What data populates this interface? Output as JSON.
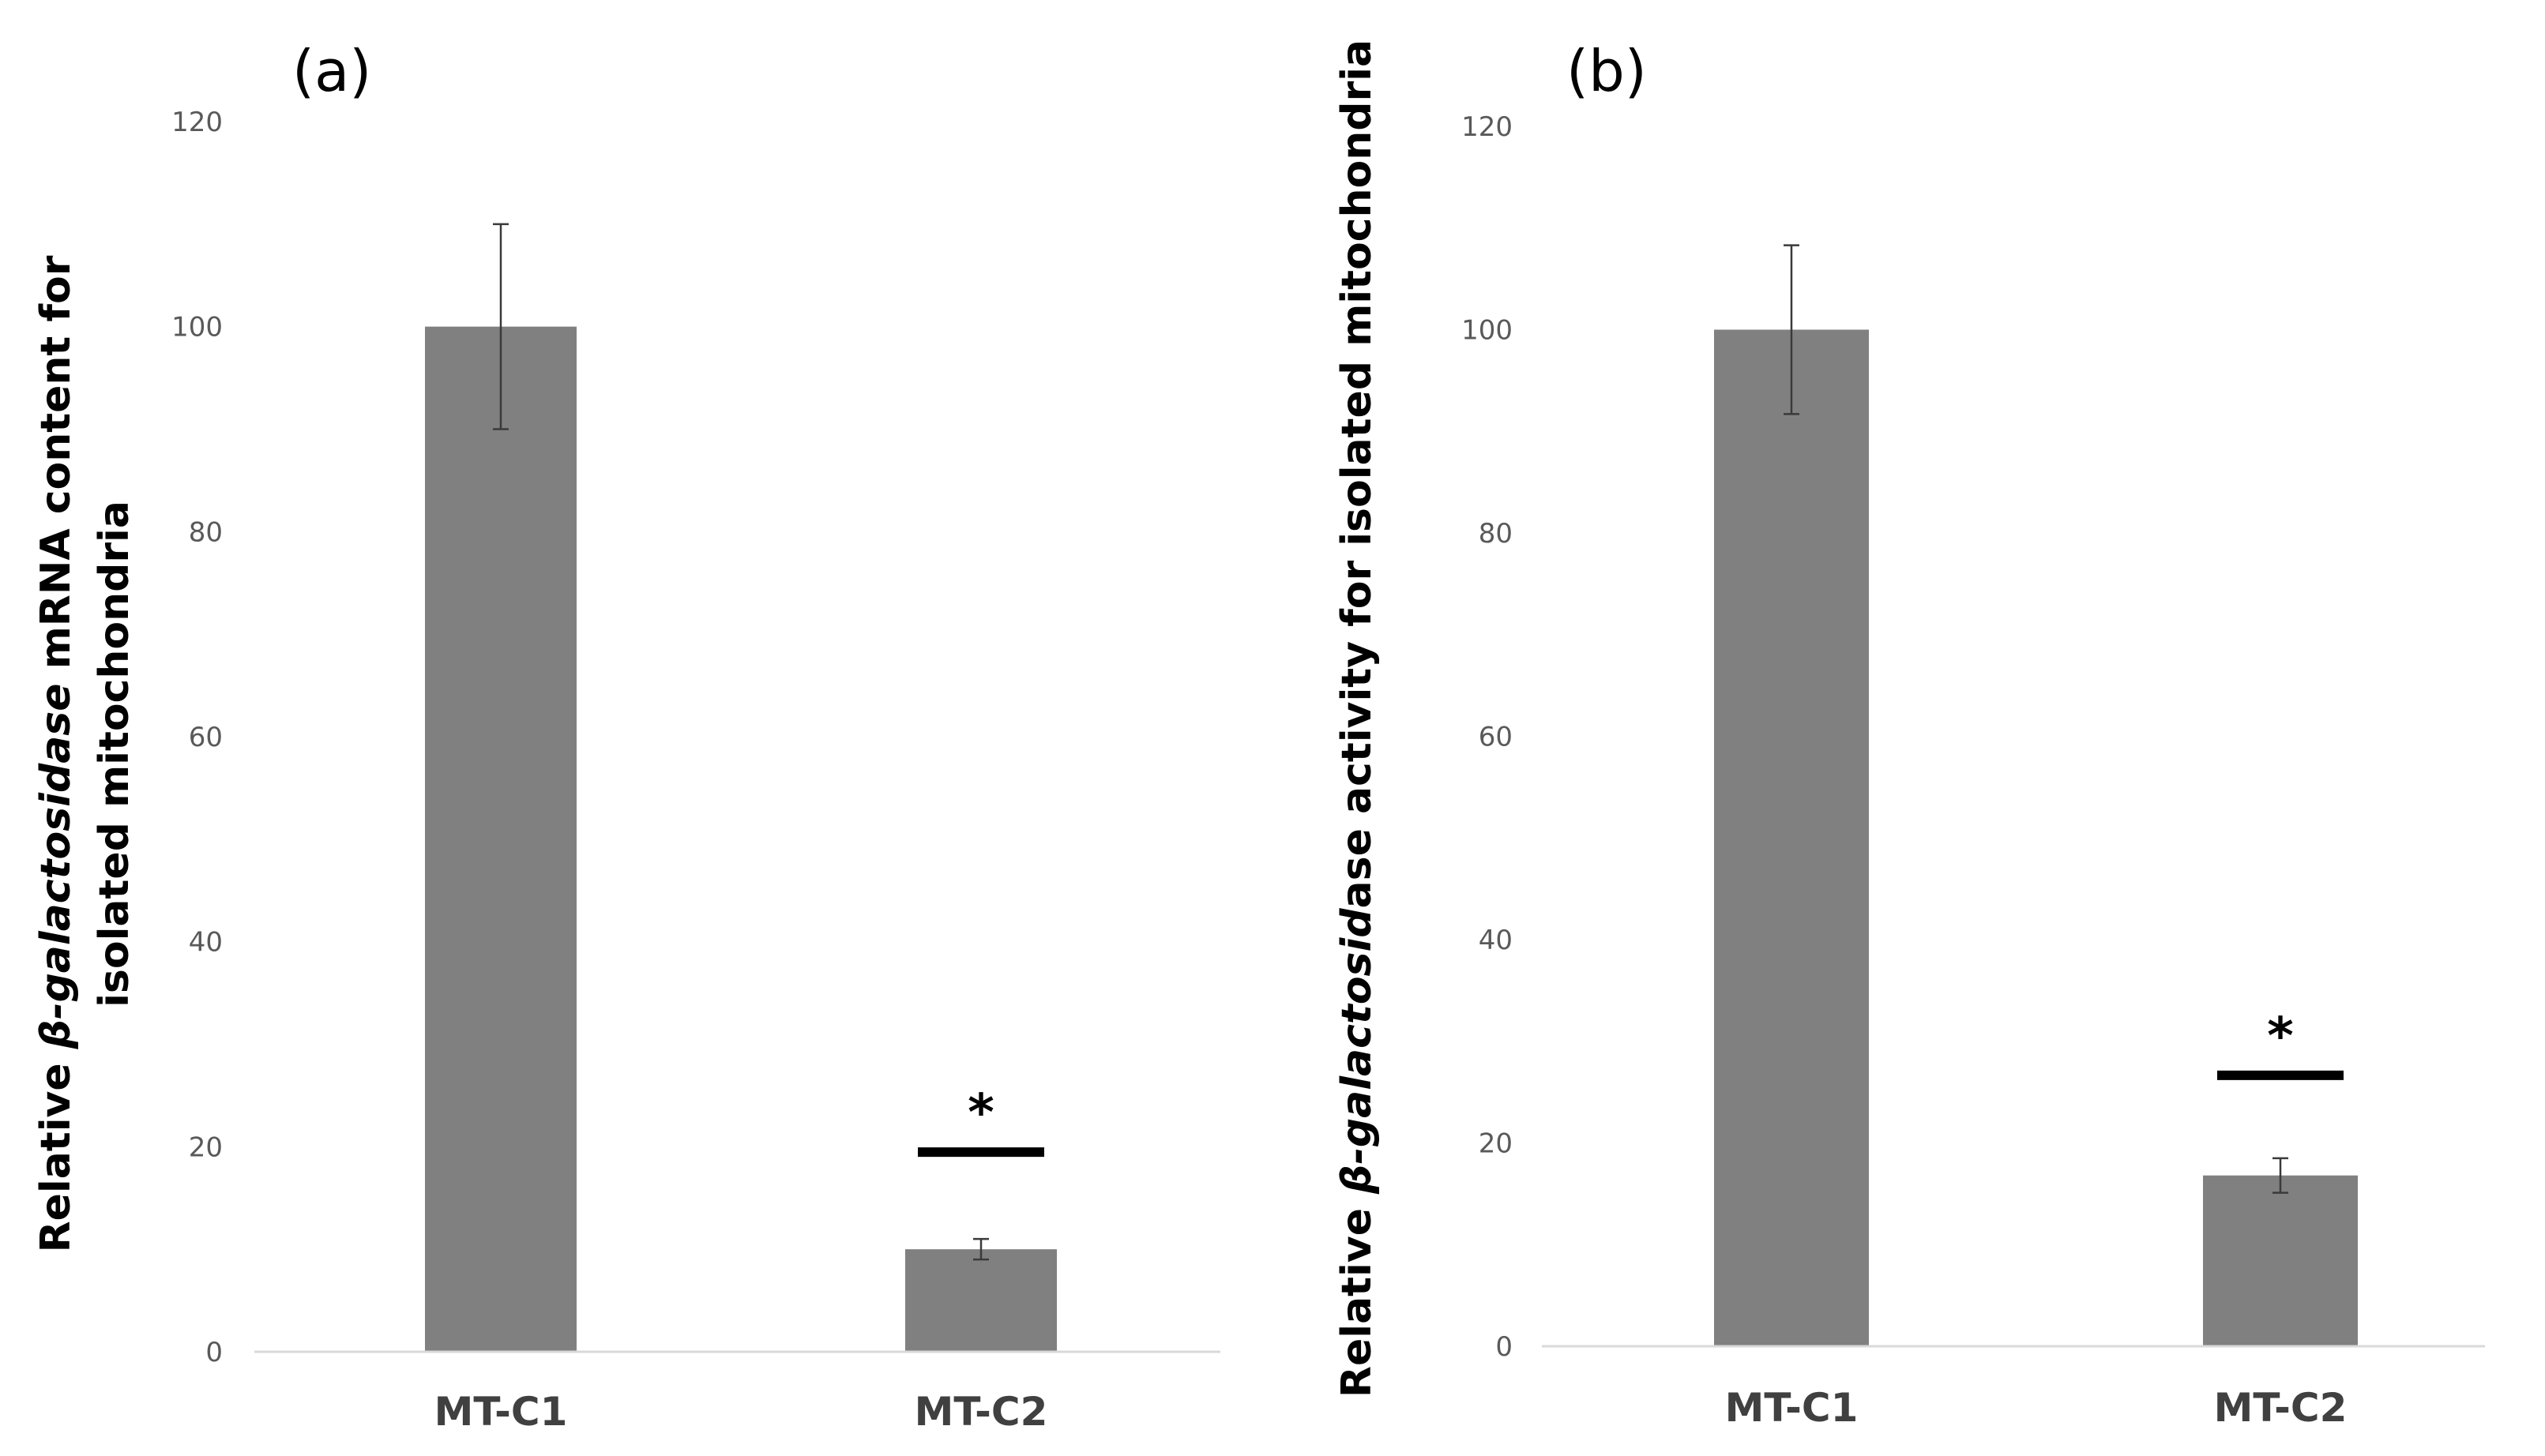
{
  "chart_data": [
    {
      "type": "bar",
      "panel_label": "(a)",
      "categories": [
        "MT-C1",
        "MT-C2"
      ],
      "values": [
        100,
        10
      ],
      "errors": [
        10,
        1
      ],
      "significance": [
        "",
        "*"
      ],
      "ylim": [
        0,
        120
      ],
      "yticks": [
        "0",
        "20",
        "40",
        "60",
        "80",
        "100",
        "120"
      ],
      "ylabel_parts": [
        "Relative ",
        "β-galactosidase",
        " mRNA content for"
      ],
      "ylabel_line2": "isolated mitochondria",
      "grid": false,
      "bar_color": "#808080"
    },
    {
      "type": "bar",
      "panel_label": "(b)",
      "categories": [
        "MT-C1",
        "MT-C2"
      ],
      "values": [
        100,
        16.8
      ],
      "errors": [
        8.3,
        1.7
      ],
      "significance": [
        "",
        "*"
      ],
      "ylim": [
        0,
        120
      ],
      "yticks": [
        "0",
        "20",
        "40",
        "60",
        "80",
        "100",
        "120"
      ],
      "ylabel_parts": [
        "Relative ",
        "β-galactosid",
        "ase activity for isolated mitochondria"
      ],
      "grid": false,
      "bar_color": "#808080"
    }
  ]
}
